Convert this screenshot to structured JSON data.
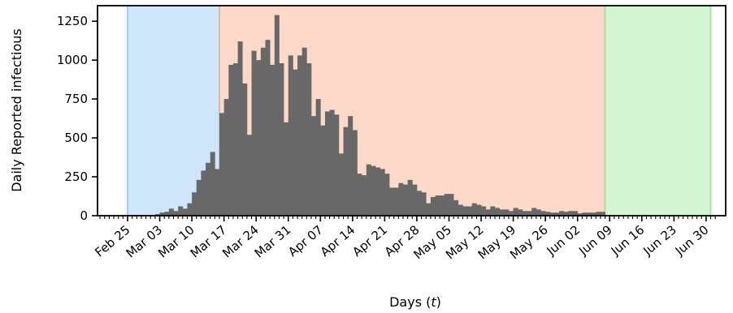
{
  "chart_data": {
    "type": "bar",
    "xlabel_prefix": "Days (",
    "xlabel_var": "t",
    "xlabel_suffix": ")",
    "ylabel": "Daily Reported infectious",
    "ylim": [
      0,
      1350
    ],
    "yticks": [
      0,
      250,
      500,
      750,
      1000,
      1250
    ],
    "x_start_date": "Feb 25",
    "x_days_total": 127,
    "x_tick_labels": [
      "Feb 25",
      "Mar 03",
      "Mar 10",
      "Mar 17",
      "Mar 24",
      "Mar 31",
      "Apr 07",
      "Apr 14",
      "Apr 21",
      "Apr 28",
      "May 05",
      "May 12",
      "May 19",
      "May 26",
      "Jun 02",
      "Jun 09",
      "Jun 16",
      "Jun 23",
      "Jun 30"
    ],
    "regions": [
      {
        "from_day": 0,
        "to_day": 20,
        "color": "#cfe6fa",
        "edge": "#a9cfee"
      },
      {
        "from_day": 20,
        "to_day": 104,
        "color": "#fdd9c9",
        "edge": "#e9b49a"
      },
      {
        "from_day": 104,
        "to_day": 127,
        "color": "#d3f5d1",
        "edge": "#a9e3a5"
      }
    ],
    "bar_color": "#686868",
    "values": [
      5,
      5,
      5,
      5,
      5,
      5,
      10,
      20,
      25,
      45,
      30,
      60,
      45,
      80,
      150,
      230,
      290,
      340,
      410,
      300,
      660,
      750,
      970,
      980,
      1120,
      850,
      520,
      1060,
      1000,
      1080,
      1130,
      970,
      1290,
      980,
      600,
      1030,
      940,
      1030,
      1080,
      980,
      640,
      750,
      580,
      670,
      680,
      650,
      400,
      570,
      640,
      550,
      270,
      260,
      330,
      320,
      310,
      300,
      270,
      180,
      180,
      210,
      200,
      230,
      200,
      160,
      150,
      80,
      120,
      130,
      130,
      140,
      140,
      100,
      70,
      60,
      60,
      80,
      70,
      60,
      40,
      60,
      50,
      40,
      40,
      30,
      50,
      40,
      30,
      30,
      50,
      40,
      30,
      25,
      20,
      20,
      30,
      25,
      30,
      30,
      15,
      20,
      20,
      20,
      25,
      25
    ]
  }
}
